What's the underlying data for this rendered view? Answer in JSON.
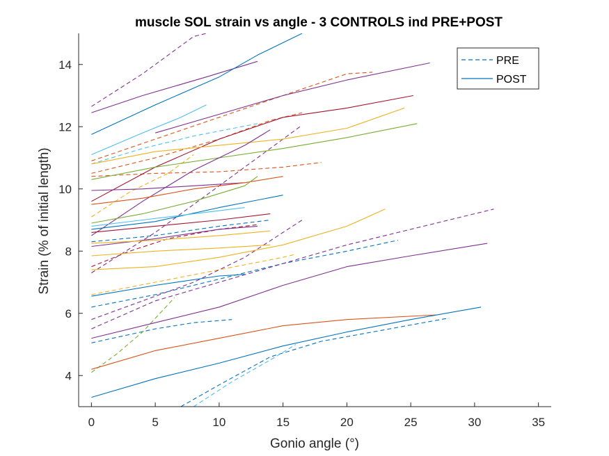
{
  "chart_data": {
    "type": "line",
    "title": "muscle SOL strain vs angle - 3 CONTROLS ind PRE+POST",
    "xlabel": "Gonio angle (°)",
    "ylabel": "Strain (% of initial length)",
    "xlim": [
      -1,
      36
    ],
    "ylim": [
      3,
      15
    ],
    "xticks": [
      0,
      5,
      10,
      15,
      20,
      25,
      30,
      35
    ],
    "yticks": [
      4,
      6,
      8,
      10,
      12,
      14
    ],
    "grid": false,
    "legend": {
      "placement": "top-right",
      "entries": [
        {
          "label": "PRE",
          "style": "dashed",
          "color": "#0072BD"
        },
        {
          "label": "POST",
          "style": "solid",
          "color": "#0072BD"
        }
      ]
    },
    "series": [
      {
        "style": "dashed",
        "color": "#7E2F8E",
        "points": [
          [
            0,
            12.65
          ],
          [
            4,
            13.7
          ],
          [
            8,
            14.9
          ],
          [
            9,
            15.0
          ]
        ]
      },
      {
        "style": "dashed",
        "color": "#D95319",
        "points": [
          [
            0,
            10.9
          ],
          [
            5,
            11.6
          ],
          [
            10,
            12.3
          ],
          [
            15,
            13.0
          ],
          [
            20,
            13.7
          ],
          [
            22,
            13.75
          ]
        ]
      },
      {
        "style": "dashed",
        "color": "#D95319",
        "points": [
          [
            0,
            10.5
          ],
          [
            5,
            11.0
          ],
          [
            10,
            11.6
          ],
          [
            14,
            12.2
          ],
          [
            16.5,
            12.45
          ]
        ]
      },
      {
        "style": "dashed",
        "color": "#4DBEEE",
        "points": [
          [
            0,
            10.8
          ],
          [
            4,
            11.3
          ],
          [
            8,
            11.7
          ],
          [
            13,
            12.1
          ]
        ]
      },
      {
        "style": "dashed",
        "color": "#D95319",
        "points": [
          [
            0,
            10.4
          ],
          [
            5,
            10.5
          ],
          [
            10,
            10.55
          ],
          [
            15,
            10.7
          ],
          [
            18,
            10.85
          ]
        ]
      },
      {
        "style": "dashed",
        "color": "#EDB120",
        "points": [
          [
            0,
            9.1
          ],
          [
            3,
            9.9
          ],
          [
            6,
            10.5
          ],
          [
            8,
            11.1
          ]
        ]
      },
      {
        "style": "dashed",
        "color": "#0072BD",
        "points": [
          [
            0,
            8.3
          ],
          [
            5,
            8.5
          ],
          [
            10,
            8.8
          ],
          [
            14,
            9.0
          ]
        ]
      },
      {
        "style": "dashed",
        "color": "#A2142F",
        "points": [
          [
            0,
            7.5
          ],
          [
            3,
            8.0
          ],
          [
            6,
            8.4
          ],
          [
            10,
            8.7
          ],
          [
            13,
            8.85
          ]
        ]
      },
      {
        "style": "dashed",
        "color": "#7E2F8E",
        "points": [
          [
            0,
            7.3
          ],
          [
            5,
            8.6
          ],
          [
            10,
            10.1
          ],
          [
            15,
            11.6
          ],
          [
            16.5,
            12.05
          ]
        ]
      },
      {
        "style": "dashed",
        "color": "#EDB120",
        "points": [
          [
            0,
            6.6
          ],
          [
            5,
            7.0
          ],
          [
            10,
            7.4
          ],
          [
            15,
            7.8
          ],
          [
            16,
            7.9
          ]
        ]
      },
      {
        "style": "dashed",
        "color": "#0072BD",
        "points": [
          [
            0,
            6.2
          ],
          [
            5,
            6.6
          ],
          [
            10,
            7.1
          ],
          [
            15,
            7.6
          ],
          [
            20,
            8.0
          ],
          [
            24,
            8.35
          ]
        ]
      },
      {
        "style": "dashed",
        "color": "#7E2F8E",
        "points": [
          [
            0,
            5.8
          ],
          [
            4,
            6.4
          ],
          [
            8,
            7.0
          ],
          [
            12,
            7.8
          ],
          [
            16.5,
            9.0
          ]
        ]
      },
      {
        "style": "dashed",
        "color": "#7E2F8E",
        "points": [
          [
            0,
            5.5
          ],
          [
            5,
            6.4
          ],
          [
            10,
            7.0
          ],
          [
            15,
            7.6
          ],
          [
            20,
            8.2
          ],
          [
            25,
            8.7
          ],
          [
            31.5,
            9.35
          ]
        ]
      },
      {
        "style": "dashed",
        "color": "#0072BD",
        "points": [
          [
            0,
            5.05
          ],
          [
            5,
            5.5
          ],
          [
            8,
            5.7
          ],
          [
            11,
            5.8
          ]
        ]
      },
      {
        "style": "dashed",
        "color": "#77AC30",
        "points": [
          [
            0,
            4.1
          ],
          [
            2,
            4.7
          ],
          [
            4,
            5.4
          ],
          [
            6.5,
            6.5
          ]
        ]
      },
      {
        "style": "dashed",
        "color": "#0072BD",
        "points": [
          [
            7,
            3.0
          ],
          [
            10,
            3.7
          ],
          [
            14,
            4.6
          ],
          [
            18,
            5.1
          ],
          [
            22,
            5.4
          ],
          [
            28,
            5.85
          ]
        ]
      },
      {
        "style": "dashed",
        "color": "#4DBEEE",
        "points": [
          [
            8,
            3.0
          ],
          [
            11,
            3.8
          ],
          [
            14,
            4.5
          ],
          [
            16,
            5.0
          ]
        ]
      },
      {
        "style": "solid",
        "color": "#7E2F8E",
        "points": [
          [
            0,
            12.45
          ],
          [
            4,
            13.0
          ],
          [
            9,
            13.6
          ],
          [
            13,
            14.1
          ]
        ]
      },
      {
        "style": "solid",
        "color": "#0072BD",
        "points": [
          [
            0,
            11.75
          ],
          [
            5,
            12.7
          ],
          [
            10,
            13.6
          ],
          [
            13,
            14.3
          ],
          [
            16.5,
            15.0
          ]
        ]
      },
      {
        "style": "solid",
        "color": "#7E2F8E",
        "points": [
          [
            5,
            11.8
          ],
          [
            10,
            12.4
          ],
          [
            15,
            13.0
          ],
          [
            20,
            13.5
          ],
          [
            26.5,
            14.05
          ]
        ]
      },
      {
        "style": "solid",
        "color": "#4DBEEE",
        "points": [
          [
            0,
            11.1
          ],
          [
            4,
            11.8
          ],
          [
            7,
            12.3
          ],
          [
            9,
            12.7
          ]
        ]
      },
      {
        "style": "solid",
        "color": "#A2142F",
        "points": [
          [
            0,
            9.6
          ],
          [
            5,
            10.7
          ],
          [
            10,
            11.6
          ],
          [
            15,
            12.3
          ],
          [
            20,
            12.6
          ],
          [
            25.2,
            13.0
          ]
        ]
      },
      {
        "style": "solid",
        "color": "#EDB120",
        "points": [
          [
            0,
            10.8
          ],
          [
            5,
            11.2
          ],
          [
            10,
            11.4
          ],
          [
            15,
            11.6
          ],
          [
            20,
            11.95
          ],
          [
            24.5,
            12.6
          ]
        ]
      },
      {
        "style": "solid",
        "color": "#77AC30",
        "points": [
          [
            0,
            10.3
          ],
          [
            5,
            10.7
          ],
          [
            10,
            11.0
          ],
          [
            15,
            11.3
          ],
          [
            20,
            11.65
          ],
          [
            25.5,
            12.1
          ]
        ]
      },
      {
        "style": "solid",
        "color": "#7E2F8E",
        "points": [
          [
            0,
            8.5
          ],
          [
            4,
            9.6
          ],
          [
            8,
            10.6
          ],
          [
            12,
            11.4
          ],
          [
            14,
            11.9
          ]
        ]
      },
      {
        "style": "solid",
        "color": "#7E2F8E",
        "points": [
          [
            0,
            9.95
          ],
          [
            4,
            10.0
          ],
          [
            8,
            10.1
          ],
          [
            12,
            10.2
          ]
        ]
      },
      {
        "style": "solid",
        "color": "#D95319",
        "points": [
          [
            0,
            9.5
          ],
          [
            4,
            9.7
          ],
          [
            8,
            10.0
          ],
          [
            12,
            10.2
          ],
          [
            15,
            10.4
          ]
        ]
      },
      {
        "style": "solid",
        "color": "#77AC30",
        "points": [
          [
            0,
            8.9
          ],
          [
            4,
            9.2
          ],
          [
            8,
            9.6
          ],
          [
            12,
            10.1
          ],
          [
            13,
            10.4
          ]
        ]
      },
      {
        "style": "solid",
        "color": "#0072BD",
        "points": [
          [
            0,
            8.7
          ],
          [
            5,
            8.95
          ],
          [
            10,
            9.4
          ],
          [
            15,
            9.8
          ]
        ]
      },
      {
        "style": "solid",
        "color": "#4DBEEE",
        "points": [
          [
            0,
            8.8
          ],
          [
            4,
            9.0
          ],
          [
            8,
            9.2
          ],
          [
            12,
            9.4
          ]
        ]
      },
      {
        "style": "solid",
        "color": "#A2142F",
        "points": [
          [
            0,
            8.6
          ],
          [
            5,
            8.8
          ],
          [
            10,
            9.0
          ],
          [
            14,
            9.2
          ]
        ]
      },
      {
        "style": "solid",
        "color": "#7E2F8E",
        "points": [
          [
            0,
            8.15
          ],
          [
            5,
            8.4
          ],
          [
            10,
            8.7
          ],
          [
            13,
            8.8
          ]
        ]
      },
      {
        "style": "solid",
        "color": "#EDB120",
        "points": [
          [
            0,
            8.25
          ],
          [
            5,
            8.35
          ],
          [
            10,
            8.5
          ],
          [
            14,
            8.65
          ]
        ]
      },
      {
        "style": "solid",
        "color": "#EDB120",
        "points": [
          [
            0,
            7.85
          ],
          [
            5,
            8.0
          ],
          [
            10,
            8.1
          ],
          [
            14,
            8.2
          ]
        ]
      },
      {
        "style": "solid",
        "color": "#EDB120",
        "points": [
          [
            0,
            7.4
          ],
          [
            5,
            7.5
          ],
          [
            10,
            7.8
          ],
          [
            15,
            8.2
          ],
          [
            20,
            8.8
          ],
          [
            23,
            9.35
          ]
        ]
      },
      {
        "style": "solid",
        "color": "#0072BD",
        "points": [
          [
            0,
            6.55
          ],
          [
            5,
            6.9
          ],
          [
            10,
            7.2
          ],
          [
            12,
            7.25
          ]
        ]
      },
      {
        "style": "solid",
        "color": "#7E2F8E",
        "points": [
          [
            0,
            5.2
          ],
          [
            5,
            5.7
          ],
          [
            10,
            6.2
          ],
          [
            15,
            6.9
          ],
          [
            20,
            7.5
          ],
          [
            25,
            7.85
          ],
          [
            31,
            8.25
          ]
        ]
      },
      {
        "style": "solid",
        "color": "#D95319",
        "points": [
          [
            0,
            4.2
          ],
          [
            5,
            4.8
          ],
          [
            10,
            5.2
          ],
          [
            15,
            5.6
          ],
          [
            20,
            5.8
          ],
          [
            27,
            5.95
          ]
        ]
      },
      {
        "style": "solid",
        "color": "#0072BD",
        "points": [
          [
            0,
            3.3
          ],
          [
            5,
            3.9
          ],
          [
            10,
            4.4
          ],
          [
            15,
            4.95
          ],
          [
            20,
            5.4
          ],
          [
            25,
            5.8
          ],
          [
            30.5,
            6.2
          ]
        ]
      }
    ]
  }
}
